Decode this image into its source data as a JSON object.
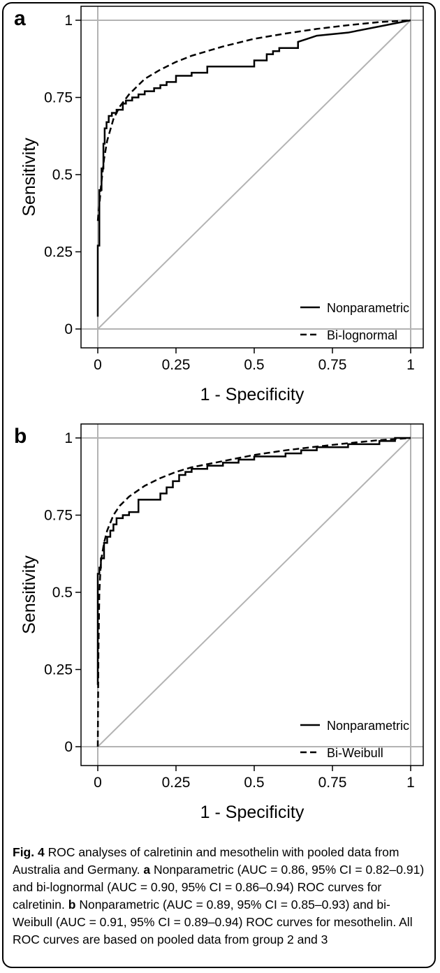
{
  "chart_data": [
    {
      "type": "line",
      "panel": "a",
      "xlabel": "1 - Specificity",
      "ylabel": "Sensitivity",
      "xlim": [
        0,
        1
      ],
      "ylim": [
        0,
        1
      ],
      "xticks": [
        "0",
        "0.25",
        "0.5",
        "0.75",
        "1"
      ],
      "yticks": [
        "0",
        "0.25",
        "0.5",
        "0.75",
        "1"
      ],
      "reference_lines": [
        "diagonal",
        "y=0",
        "y=1",
        "x=0",
        "x=1"
      ],
      "legend_position": "bottom-right",
      "series": [
        {
          "name": "Nonparametric",
          "style": "solid",
          "x": [
            0,
            0,
            0.005,
            0.005,
            0.012,
            0.012,
            0.018,
            0.018,
            0.022,
            0.022,
            0.028,
            0.028,
            0.035,
            0.035,
            0.045,
            0.045,
            0.06,
            0.06,
            0.08,
            0.08,
            0.09,
            0.09,
            0.11,
            0.11,
            0.13,
            0.13,
            0.15,
            0.15,
            0.18,
            0.18,
            0.2,
            0.2,
            0.22,
            0.22,
            0.25,
            0.25,
            0.3,
            0.3,
            0.35,
            0.35,
            0.42,
            0.42,
            0.5,
            0.5,
            0.54,
            0.54,
            0.56,
            0.56,
            0.58,
            0.58,
            0.64,
            0.64,
            0.67,
            0.7,
            0.8,
            0.9,
            1
          ],
          "y": [
            0.04,
            0.27,
            0.27,
            0.45,
            0.45,
            0.52,
            0.52,
            0.6,
            0.6,
            0.65,
            0.65,
            0.67,
            0.67,
            0.69,
            0.69,
            0.7,
            0.7,
            0.71,
            0.71,
            0.73,
            0.73,
            0.74,
            0.74,
            0.75,
            0.75,
            0.76,
            0.76,
            0.77,
            0.77,
            0.78,
            0.78,
            0.79,
            0.79,
            0.8,
            0.8,
            0.82,
            0.82,
            0.83,
            0.83,
            0.85,
            0.85,
            0.85,
            0.85,
            0.87,
            0.87,
            0.89,
            0.89,
            0.9,
            0.9,
            0.91,
            0.91,
            0.93,
            0.94,
            0.95,
            0.96,
            0.98,
            1
          ]
        },
        {
          "name": "Bi-lognormal",
          "style": "dashed",
          "x": [
            0,
            0.005,
            0.01,
            0.02,
            0.03,
            0.05,
            0.07,
            0.1,
            0.15,
            0.2,
            0.25,
            0.3,
            0.4,
            0.5,
            0.6,
            0.7,
            0.8,
            0.9,
            1
          ],
          "y": [
            0.35,
            0.4,
            0.46,
            0.55,
            0.61,
            0.68,
            0.72,
            0.76,
            0.81,
            0.84,
            0.865,
            0.885,
            0.915,
            0.94,
            0.957,
            0.972,
            0.984,
            0.994,
            1
          ]
        }
      ]
    },
    {
      "type": "line",
      "panel": "b",
      "xlabel": "1 - Specificity",
      "ylabel": "Sensitivity",
      "xlim": [
        0,
        1
      ],
      "ylim": [
        0,
        1
      ],
      "xticks": [
        "0",
        "0.25",
        "0.5",
        "0.75",
        "1"
      ],
      "yticks": [
        "0",
        "0.25",
        "0.5",
        "0.75",
        "1"
      ],
      "reference_lines": [
        "diagonal",
        "y=0",
        "y=1",
        "x=0",
        "x=1"
      ],
      "legend_position": "bottom-right",
      "series": [
        {
          "name": "Nonparametric",
          "style": "solid",
          "x": [
            0,
            0,
            0.005,
            0.005,
            0.01,
            0.01,
            0.02,
            0.02,
            0.03,
            0.03,
            0.04,
            0.04,
            0.05,
            0.05,
            0.06,
            0.06,
            0.08,
            0.08,
            0.1,
            0.1,
            0.13,
            0.13,
            0.15,
            0.15,
            0.2,
            0.2,
            0.22,
            0.22,
            0.24,
            0.24,
            0.26,
            0.26,
            0.28,
            0.28,
            0.3,
            0.3,
            0.35,
            0.35,
            0.4,
            0.4,
            0.45,
            0.45,
            0.5,
            0.5,
            0.6,
            0.6,
            0.65,
            0.65,
            0.7,
            0.7,
            0.8,
            0.8,
            0.9,
            0.9,
            0.95,
            0.95,
            1
          ],
          "y": [
            0.2,
            0.56,
            0.56,
            0.58,
            0.58,
            0.61,
            0.61,
            0.66,
            0.66,
            0.68,
            0.68,
            0.7,
            0.7,
            0.72,
            0.72,
            0.74,
            0.74,
            0.75,
            0.75,
            0.76,
            0.76,
            0.8,
            0.8,
            0.8,
            0.8,
            0.82,
            0.82,
            0.84,
            0.84,
            0.86,
            0.86,
            0.88,
            0.88,
            0.89,
            0.89,
            0.9,
            0.9,
            0.91,
            0.91,
            0.92,
            0.92,
            0.93,
            0.93,
            0.94,
            0.94,
            0.95,
            0.95,
            0.96,
            0.96,
            0.97,
            0.97,
            0.98,
            0.98,
            0.99,
            0.99,
            1,
            1
          ]
        },
        {
          "name": "Bi-Weibull",
          "style": "dashed",
          "x": [
            0,
            0.002,
            0.005,
            0.01,
            0.02,
            0.03,
            0.05,
            0.07,
            0.1,
            0.15,
            0.2,
            0.25,
            0.3,
            0.4,
            0.5,
            0.6,
            0.7,
            0.8,
            0.9,
            1
          ],
          "y": [
            0,
            0.3,
            0.5,
            0.6,
            0.66,
            0.7,
            0.75,
            0.78,
            0.81,
            0.845,
            0.87,
            0.89,
            0.905,
            0.925,
            0.945,
            0.96,
            0.972,
            0.983,
            0.993,
            1
          ]
        }
      ]
    }
  ],
  "figure": {
    "caption_label": "Fig. 4",
    "caption_text": " ROC analyses of calretinin and mesothelin with pooled data from Australia and Germany. ",
    "caption_a_label": "a",
    "caption_a_text": " Nonparametric (AUC = 0.86, 95% CI = 0.82–0.91) and bi-lognormal (AUC = 0.90, 95% CI = 0.86–0.94) ROC curves for calretinin. ",
    "caption_b_label": "b",
    "caption_b_text": " Nonparametric (AUC = 0.89, 95% CI = 0.85–0.93) and bi-Weibull (AUC = 0.91, 95% CI = 0.89–0.94) ROC curves for mesothelin. All ROC curves are based on pooled data from group 2 and 3"
  }
}
